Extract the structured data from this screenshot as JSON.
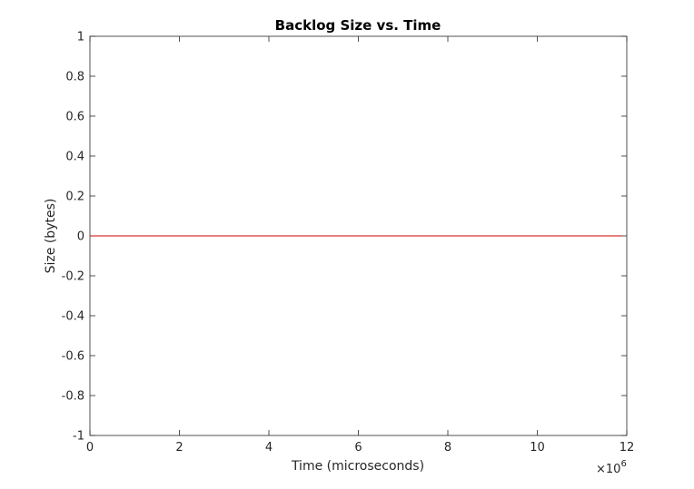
{
  "chart_data": {
    "type": "line",
    "title": "Backlog Size vs. Time",
    "xlabel": "Time (microseconds)",
    "ylabel": "Size (bytes)",
    "xlim": [
      0,
      12
    ],
    "ylim": [
      -1,
      1
    ],
    "x_scale_exponent_base": "×10",
    "x_scale_exponent_power": "6",
    "x_ticks": [
      0,
      2,
      4,
      6,
      8,
      10,
      12
    ],
    "x_tick_labels": [
      "0",
      "2",
      "4",
      "6",
      "8",
      "10",
      "12"
    ],
    "y_ticks": [
      -1,
      -0.8,
      -0.6,
      -0.4,
      -0.2,
      0,
      0.2,
      0.4,
      0.6,
      0.8,
      1
    ],
    "y_tick_labels": [
      "-1",
      "-0.8",
      "-0.6",
      "-0.4",
      "-0.2",
      "0",
      "0.2",
      "0.4",
      "0.6",
      "0.8",
      "1"
    ],
    "grid": false,
    "box": true,
    "series": [
      {
        "color": "#cc0000",
        "x": [
          0,
          11.9
        ],
        "y": [
          0,
          0
        ]
      }
    ]
  }
}
